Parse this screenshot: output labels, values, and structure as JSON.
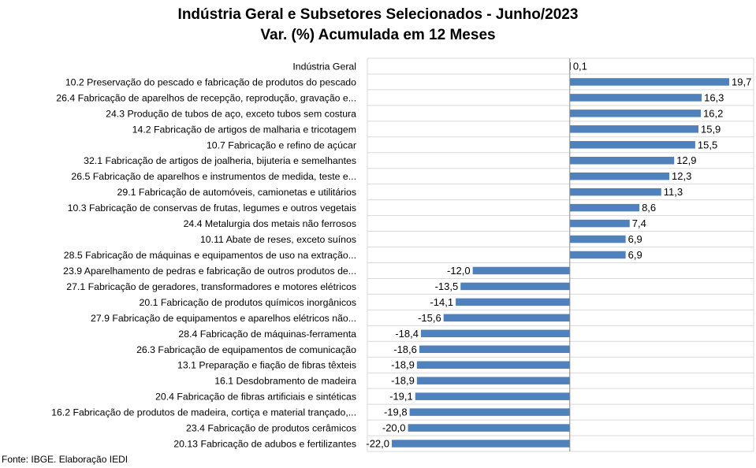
{
  "chart_data": {
    "type": "bar",
    "orientation": "horizontal",
    "title": "Indústria Geral e Subsetores Selecionados - Junho/2023",
    "subtitle": "Var. (%) Acumulada em 12 Meses",
    "categories": [
      "Indústria Geral",
      "10.2 Preservação do pescado e fabricação de produtos do pescado",
      "26.4 Fabricação de aparelhos de recepção, reprodução, gravação e...",
      "24.3 Produção de tubos de aço, exceto tubos sem costura",
      "14.2 Fabricação de artigos de malharia e tricotagem",
      "10.7 Fabricação e refino de açúcar",
      "32.1 Fabricação de artigos de joalheria, bijuteria e semelhantes",
      "26.5 Fabricação de aparelhos e instrumentos de medida, teste e...",
      "29.1 Fabricação de automóveis, camionetas e utilitários",
      "10.3 Fabricação de conservas de frutas, legumes e outros vegetais",
      "24.4 Metalurgia dos metais não ferrosos",
      "10.11 Abate de reses, exceto suínos",
      "28.5 Fabricação de máquinas e equipamentos de uso na extração...",
      "23.9 Aparelhamento de pedras e fabricação de outros produtos de...",
      "27.1 Fabricação de geradores, transformadores e motores elétricos",
      "20.1 Fabricação de produtos químicos inorgânicos",
      "27.9 Fabricação de equipamentos e aparelhos elétricos não...",
      "28.4 Fabricação de máquinas-ferramenta",
      "26.3 Fabricação de equipamentos de comunicação",
      "13.1 Preparação e fiação de fibras têxteis",
      "16.1 Desdobramento de madeira",
      "20.4 Fabricação de fibras artificiais e sintéticas",
      "16.2 Fabricação de produtos de madeira, cortiça e material trançado,...",
      "23.4 Fabricação de produtos cerâmicos",
      "20.13 Fabricação de adubos e fertilizantes"
    ],
    "values": [
      0.1,
      19.7,
      16.3,
      16.2,
      15.9,
      15.5,
      12.9,
      12.3,
      11.3,
      8.6,
      7.4,
      6.9,
      6.9,
      -12.0,
      -13.5,
      -14.1,
      -15.6,
      -18.4,
      -18.6,
      -18.9,
      -18.9,
      -19.1,
      -19.8,
      -20.0,
      -22.0
    ],
    "value_labels": [
      "0,1",
      "19,7",
      "16,3",
      "16,2",
      "15,9",
      "15,5",
      "12,9",
      "12,3",
      "11,3",
      "8,6",
      "7,4",
      "6,9",
      "6,9",
      "-12,0",
      "-13,5",
      "-14,1",
      "-15,6",
      "-18,4",
      "-18,6",
      "-18,9",
      "-18,9",
      "-19,1",
      "-19,8",
      "-20,0",
      "-22,0"
    ],
    "xlim": [
      -22.0,
      19.7
    ],
    "grid": true,
    "legend": "none",
    "colors": {
      "bar": "#4F81BD",
      "highlight_bar": "#C00000",
      "grid": "#D9D9D9",
      "axis": "#868686"
    },
    "source": "Fonte: IBGE. Elaboração IEDI"
  }
}
